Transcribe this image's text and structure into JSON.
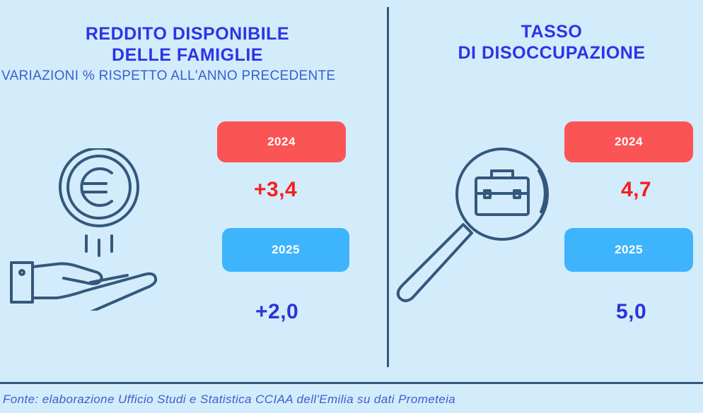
{
  "left": {
    "title_line1": "REDDITO DISPONIBILE",
    "title_line2": "DELLE FAMIGLIE",
    "subtitle": "VARIAZIONI % RISPETTO ALL'ANNO PRECEDENTE",
    "year1": "2024",
    "value1": "+3,4",
    "year2": "2025",
    "value2": "+2,0"
  },
  "right": {
    "title_line1": "TASSO",
    "title_line2": "DI DISOCCUPAZIONE",
    "year1": "2024",
    "value1": "4,7",
    "year2": "2025",
    "value2": "5,0"
  },
  "footer": {
    "source": "Fonte: elaborazione Ufficio Studi e Statistica CCIAA dell'Emilia su dati Prometeia"
  },
  "colors": {
    "background": "#d3ecfb",
    "title": "#2b35e6",
    "pill_2024": "#fb5455",
    "pill_2025": "#3eb4fd",
    "value_2024": "#f71f1d",
    "value_2025": "#2a34d9",
    "icon_stroke": "#34587c"
  },
  "icons": {
    "left": "euro-coin-hand-icon",
    "right": "magnifier-briefcase-icon"
  }
}
